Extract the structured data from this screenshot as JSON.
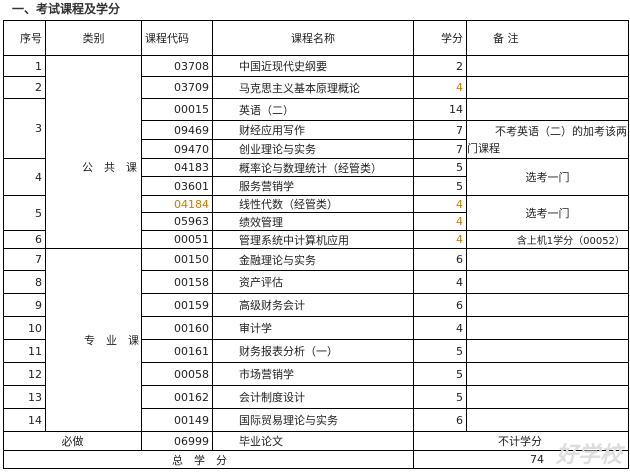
{
  "title": "一、考试课程及学分",
  "headers": {
    "seq": "序号",
    "category": "类别",
    "code": "课程代码",
    "name": "课程名称",
    "credit": "学分",
    "note": "备 注"
  },
  "categories": {
    "public": "公　共　课",
    "major": "专　业　课"
  },
  "rows": [
    {
      "seq": "1",
      "code": "03708",
      "name": "中国近现代史纲要",
      "credit": "2"
    },
    {
      "seq": "2",
      "code": "03709",
      "name": "马克思主义基本原理概论",
      "credit": "4"
    },
    {
      "seq": "3",
      "code": "00015",
      "name": "英语（二）",
      "credit": "14"
    },
    {
      "code": "09469",
      "name": "财经应用写作",
      "credit": "7"
    },
    {
      "code": "09470",
      "name": "创业理论与实务",
      "credit": "7"
    },
    {
      "seq": "4",
      "code": "04183",
      "name": "概率论与数理统计（经管类）",
      "credit": "5"
    },
    {
      "code": "03601",
      "name": "服务营销学",
      "credit": "5"
    },
    {
      "seq": "5",
      "code": "04184",
      "name": "线性代数（经管类）",
      "credit": "4"
    },
    {
      "code": "05963",
      "name": "绩效管理",
      "credit": "4"
    },
    {
      "seq": "6",
      "code": "00051",
      "name": "管理系统中计算机应用",
      "credit": "4"
    },
    {
      "seq": "7",
      "code": "00150",
      "name": "金融理论与实务",
      "credit": "6"
    },
    {
      "seq": "8",
      "code": "00158",
      "name": "资产评估",
      "credit": "4"
    },
    {
      "seq": "9",
      "code": "00159",
      "name": "高级财务会计",
      "credit": "6"
    },
    {
      "seq": "10",
      "code": "00160",
      "name": "审计学",
      "credit": "4"
    },
    {
      "seq": "11",
      "code": "00161",
      "name": "财务报表分析（一）",
      "credit": "5"
    },
    {
      "seq": "12",
      "code": "00058",
      "name": "市场营销学",
      "credit": "5"
    },
    {
      "seq": "13",
      "code": "00162",
      "name": "会计制度设计",
      "credit": "5"
    },
    {
      "seq": "14",
      "code": "00149",
      "name": "国际贸易理论与实务",
      "credit": "6"
    }
  ],
  "notes": {
    "english_alt": "不考英语（二）的加考该两门课程",
    "choose_one_a": "选考一门",
    "choose_one_b": "选考一门",
    "lab": "含上机1学分（00052）"
  },
  "thesis": {
    "label": "必做",
    "code": "06999",
    "name": "毕业论文",
    "note": "不计学分"
  },
  "total": {
    "label": "总　学　分",
    "value": "74"
  },
  "watermark": "好学校 91goodschool.com"
}
